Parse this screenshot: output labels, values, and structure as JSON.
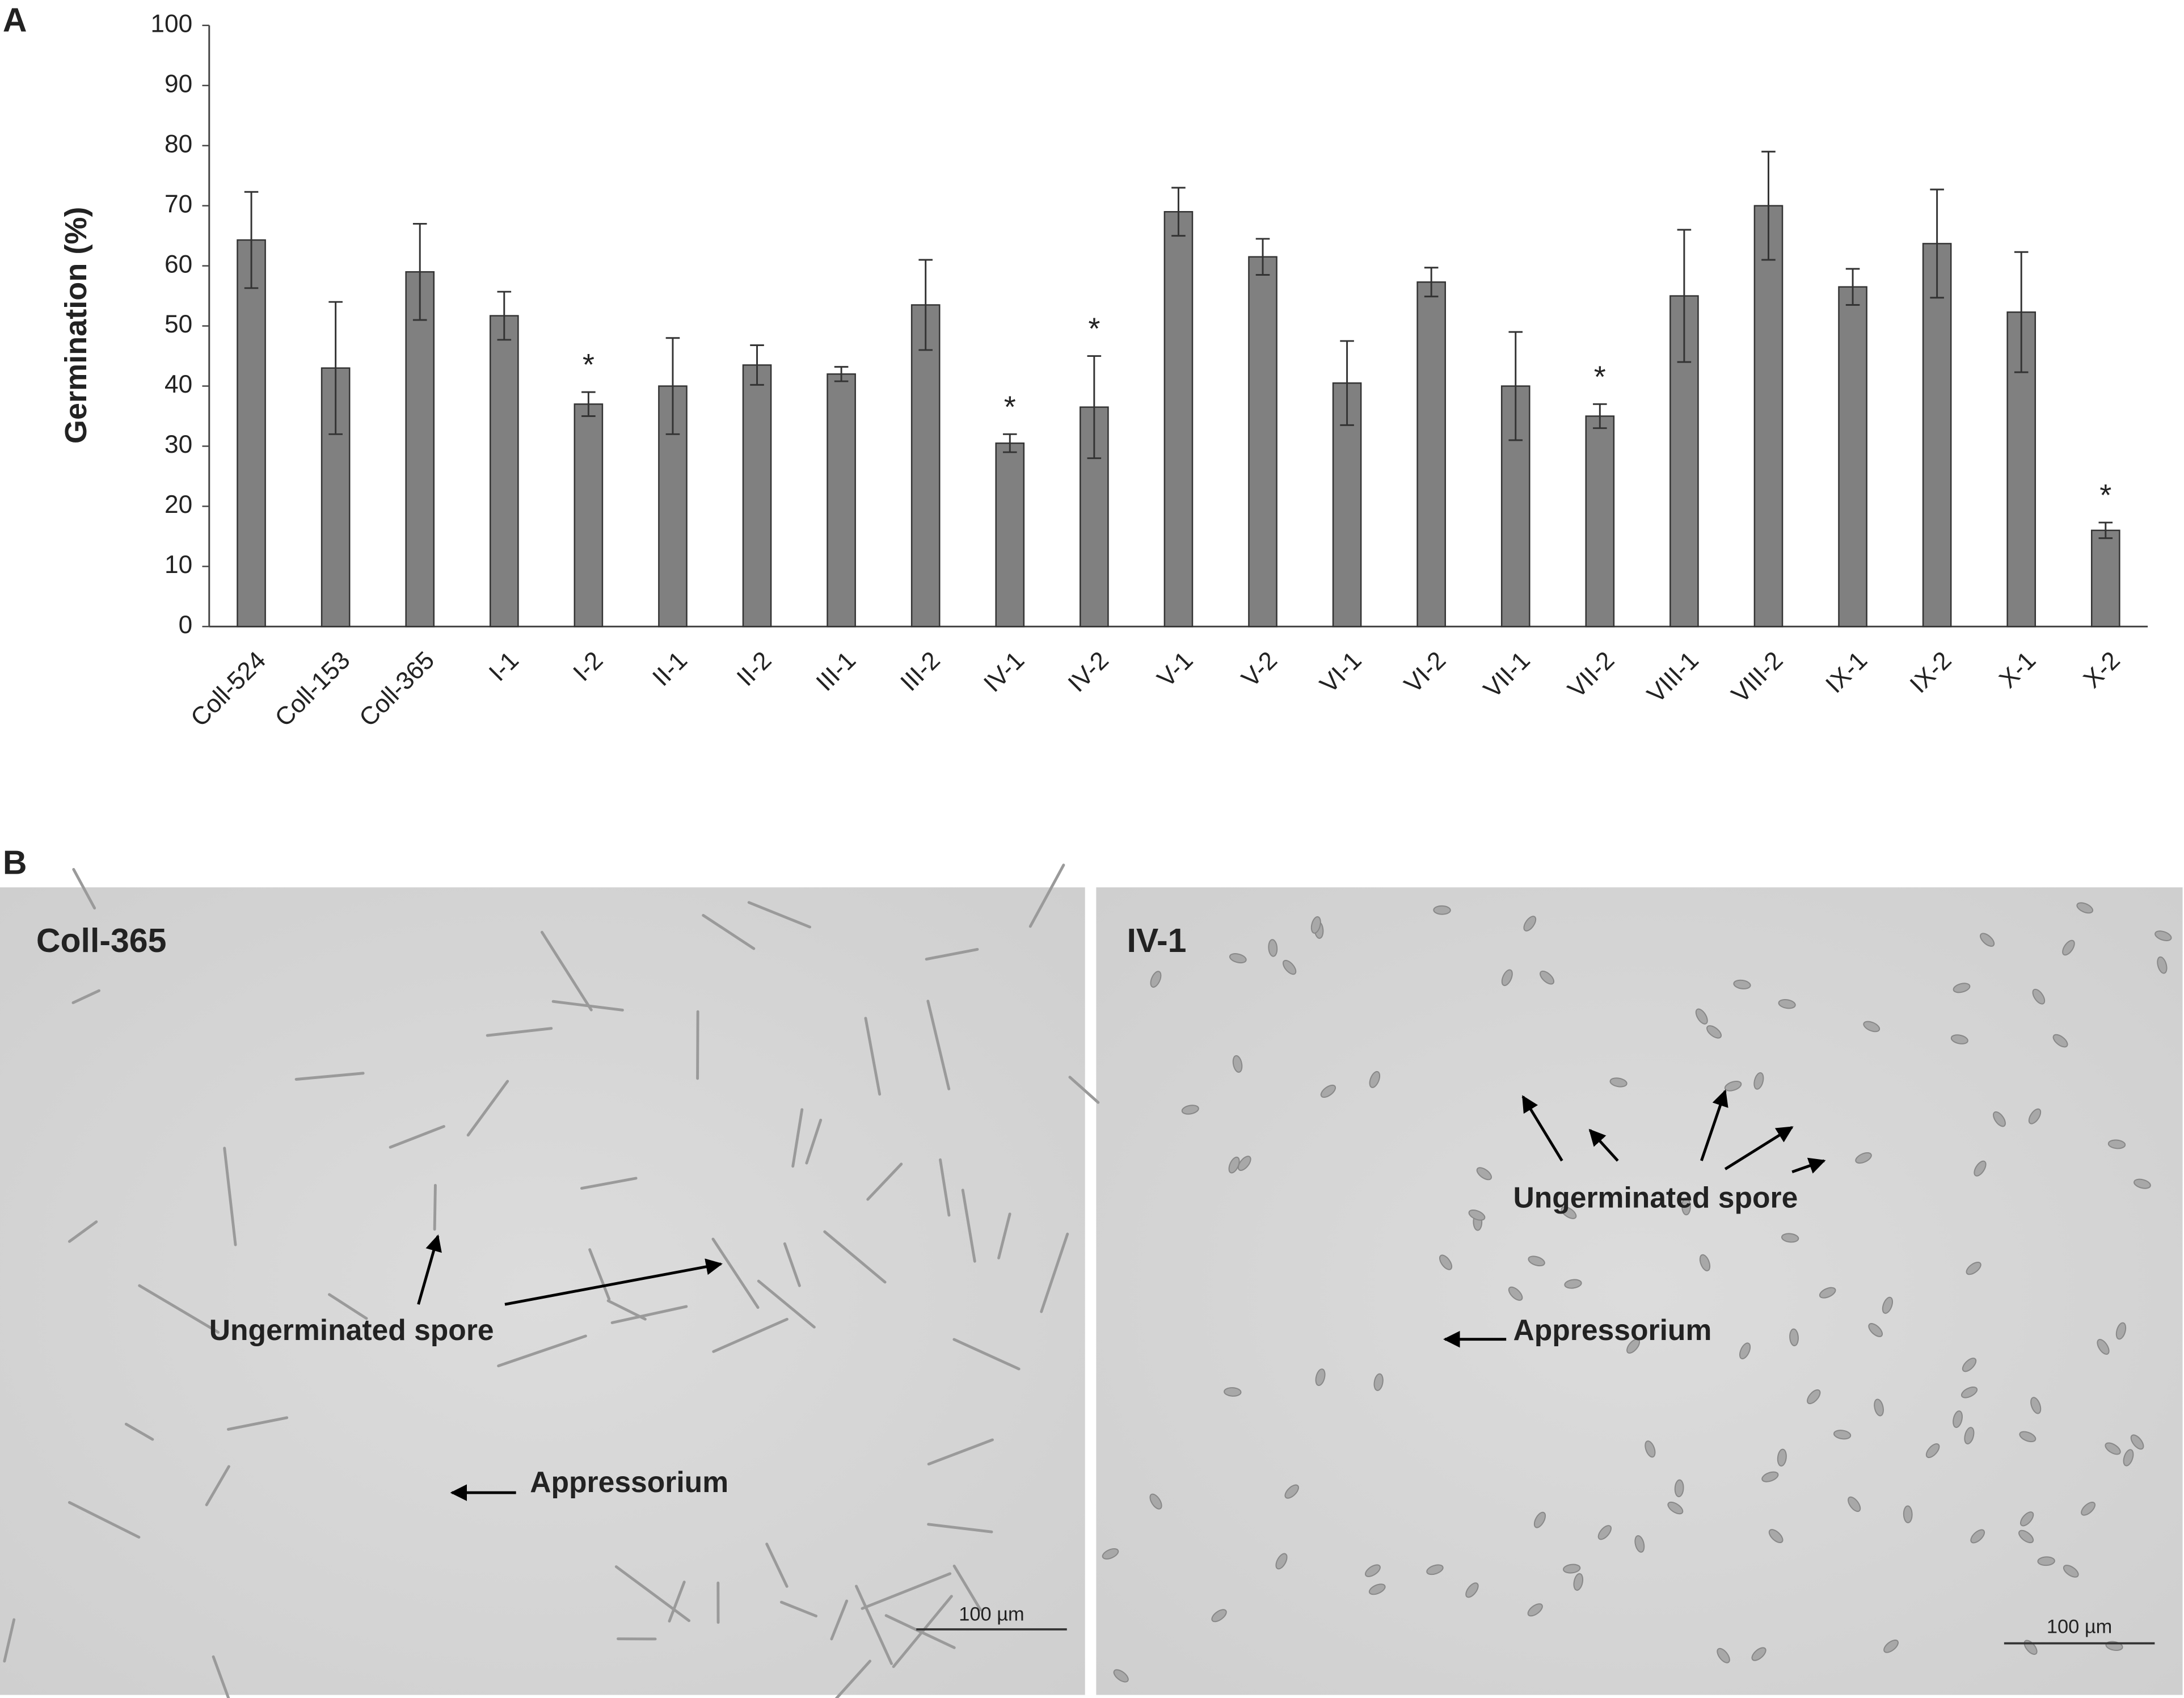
{
  "chart_data": {
    "type": "bar",
    "y_label": "Germination (%)",
    "categories": [
      "Coll-524",
      "Coll-153",
      "Coll-365",
      "I-1",
      "I-2",
      "II-1",
      "II-2",
      "III-1",
      "III-2",
      "IV-1",
      "IV-2",
      "V-1",
      "V-2",
      "VI-1",
      "VI-2",
      "VII-1",
      "VII-2",
      "VIII-1",
      "VIII-2",
      "IX-1",
      "IX-2",
      "X-1",
      "X-2"
    ],
    "values": [
      64.3,
      43,
      59,
      51.7,
      37,
      40,
      43.5,
      42,
      53.5,
      30.5,
      36.5,
      69,
      61.5,
      40.5,
      57.3,
      40,
      35,
      55,
      70,
      56.5,
      63.7,
      52.3,
      16
    ],
    "errors": [
      8,
      11,
      8,
      4,
      2,
      8,
      3.3,
      1.2,
      7.5,
      1.5,
      8.5,
      4,
      3,
      7,
      2.4,
      9,
      2,
      11,
      9,
      3,
      9,
      10,
      1.3
    ],
    "color": "#808080",
    "ylim": [
      0,
      100
    ],
    "yticks": [
      0,
      10,
      20,
      30,
      40,
      50,
      60,
      70,
      80,
      90,
      100
    ],
    "grid": false,
    "annotations": [
      {
        "x": "I-2",
        "text": "*"
      },
      {
        "x": "IV-1",
        "text": "*"
      },
      {
        "x": "IV-2",
        "text": "*"
      },
      {
        "x": "VII-2",
        "text": "*"
      },
      {
        "x": "X-2",
        "text": "*"
      }
    ]
  },
  "figure": {
    "panel_labels": [
      "A",
      "B"
    ],
    "micrographs": [
      {
        "title": "Coll-365",
        "labels": [
          "Ungerminated spore",
          "Appressorium"
        ],
        "scale_bar": "100 µm"
      },
      {
        "title": "IV-1",
        "labels": [
          "Ungerminated spore",
          "Appressorium"
        ],
        "scale_bar": "100 µm"
      }
    ]
  }
}
